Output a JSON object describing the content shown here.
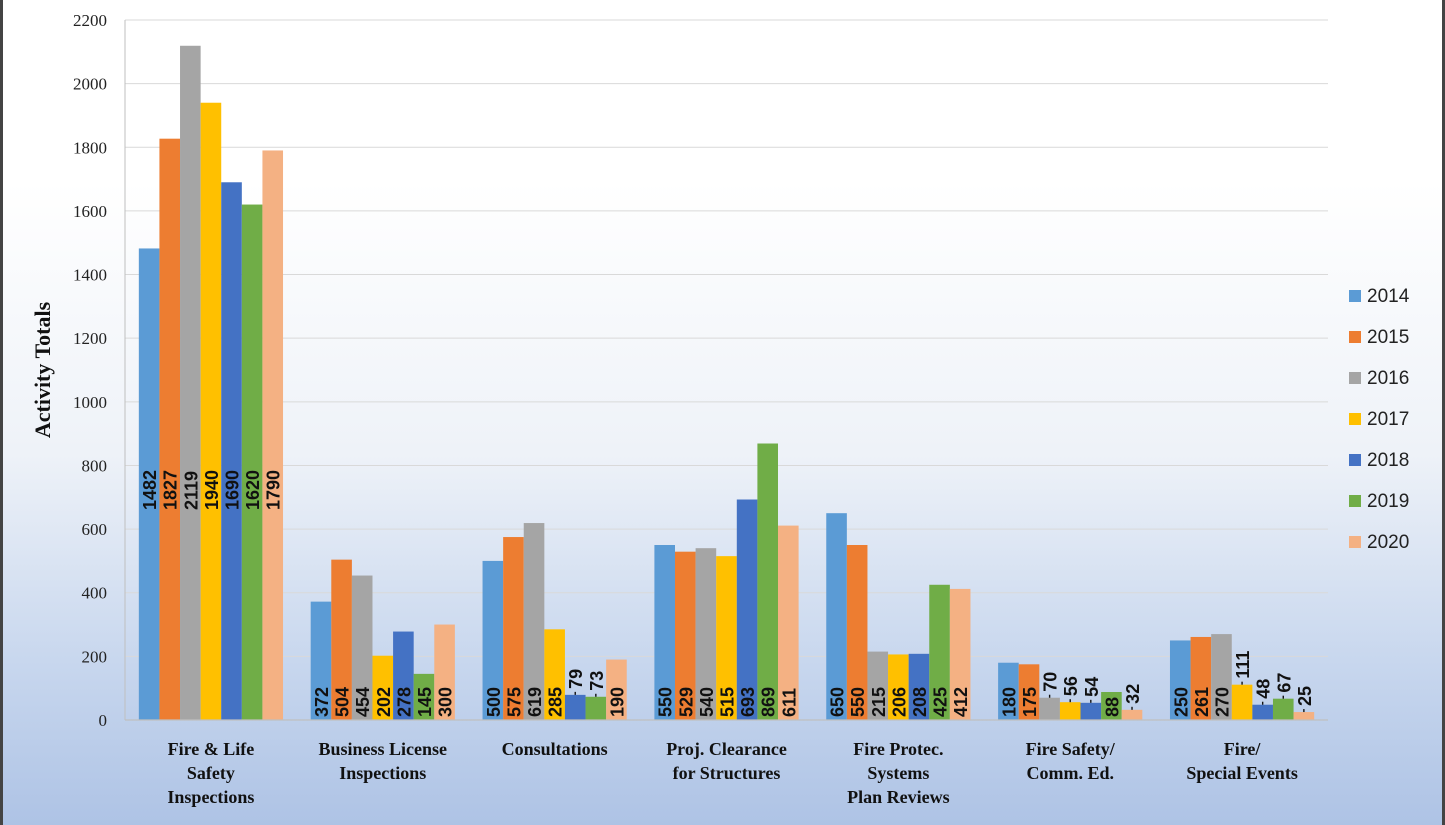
{
  "chart_data": {
    "type": "bar",
    "ylabel": "Activity Totals",
    "ylim": [
      0,
      2200
    ],
    "ytick_step": 200,
    "grid": true,
    "legend_position": "right",
    "categories": [
      [
        "Fire & Life",
        "Safety",
        "Inspections"
      ],
      [
        "Business License",
        "Inspections"
      ],
      [
        "Consultations"
      ],
      [
        "Proj. Clearance",
        "for Structures"
      ],
      [
        "Fire Protec.",
        "Systems",
        "Plan Reviews"
      ],
      [
        "Fire Safety/",
        "Comm. Ed."
      ],
      [
        "Fire/",
        "Special Events"
      ]
    ],
    "series": [
      {
        "name": "2014",
        "color": "#5b9bd5",
        "values": [
          1482,
          372,
          500,
          550,
          650,
          180,
          250
        ]
      },
      {
        "name": "2015",
        "color": "#ed7d31",
        "values": [
          1827,
          504,
          575,
          529,
          550,
          175,
          261
        ]
      },
      {
        "name": "2016",
        "color": "#a5a5a5",
        "values": [
          2119,
          454,
          619,
          540,
          215,
          70,
          270
        ]
      },
      {
        "name": "2017",
        "color": "#ffc000",
        "values": [
          1940,
          202,
          285,
          515,
          206,
          56,
          111
        ]
      },
      {
        "name": "2018",
        "color": "#4472c4",
        "values": [
          1690,
          278,
          79,
          693,
          208,
          54,
          48
        ]
      },
      {
        "name": "2019",
        "color": "#70ad47",
        "values": [
          1620,
          145,
          73,
          869,
          425,
          88,
          67
        ]
      },
      {
        "name": "2020",
        "color": "#f4b183",
        "values": [
          1790,
          300,
          190,
          611,
          412,
          32,
          25
        ]
      }
    ],
    "data_labels": [
      [
        "1482",
        "1827",
        "2119",
        "1940",
        "1690",
        "1620",
        "1790"
      ],
      [
        "372",
        "504",
        "454",
        "202",
        "278",
        "145",
        "300"
      ],
      [
        "500",
        "575",
        "619",
        "285",
        "79",
        "73",
        "190"
      ],
      [
        "550",
        "529",
        "540",
        "515",
        "693",
        "869",
        "611"
      ],
      [
        "650",
        "550",
        "215",
        "206",
        "208",
        "425",
        "412"
      ],
      [
        "180",
        "175",
        "70",
        "56",
        "54",
        "88",
        "32"
      ],
      [
        "250",
        "261",
        "270",
        "111",
        "48",
        "67",
        "25"
      ]
    ]
  }
}
